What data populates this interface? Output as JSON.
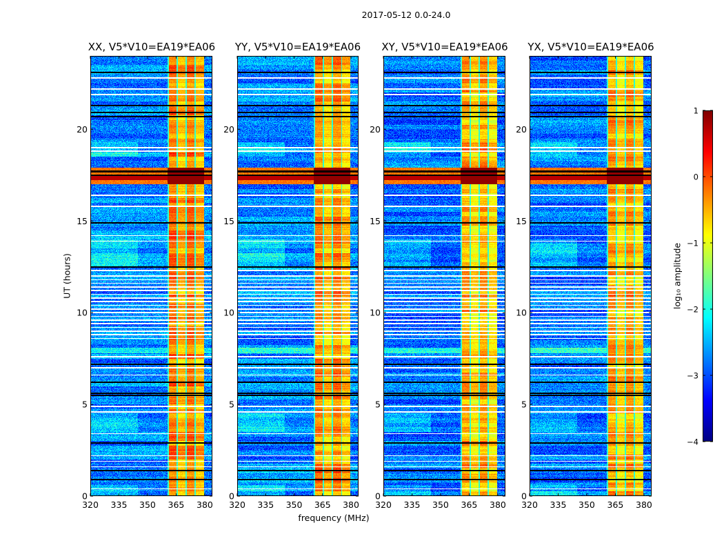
{
  "figure": {
    "suptitle": "2017-05-12 0.0-24.0"
  },
  "chart_data": {
    "type": "heatmap",
    "title": "2017-05-12 0.0-24.0",
    "xlabel": "frequency (MHz)",
    "ylabel": "UT (hours)",
    "xlim": [
      320,
      384
    ],
    "ylim": [
      0,
      24
    ],
    "xticks": [
      "320",
      "335",
      "350",
      "365",
      "380"
    ],
    "yticks": [
      "0",
      "5",
      "10",
      "15",
      "20"
    ],
    "colormap": "jet",
    "colorbar": {
      "label": "log₁₀ amplitude",
      "range": [
        -4,
        1
      ],
      "ticks": [
        "1",
        "0",
        "−1",
        "−2",
        "−3",
        "−4"
      ]
    },
    "panels": [
      {
        "title": "XX, V5*V10=EA19*EA06",
        "background_log_amp": -2.7,
        "rfi_log_amp": -0.3
      },
      {
        "title": "YY, V5*V10=EA19*EA06",
        "background_log_amp": -2.7,
        "rfi_log_amp": -0.4
      },
      {
        "title": "XY, V5*V10=EA19*EA06",
        "background_log_amp": -2.8,
        "rfi_log_amp": -0.5
      },
      {
        "title": "YX, V5*V10=EA19*EA06",
        "background_log_amp": -2.8,
        "rfi_log_amp": -0.5
      }
    ],
    "rfi_band_mhz": [
      360.5,
      379.5
    ],
    "strong_rfi_hours": [
      17.0,
      17.9
    ],
    "flagged_black_hours": [
      23.1,
      21.3,
      20.9,
      20.7,
      17.7,
      17.5,
      14.9,
      12.5,
      7.2,
      6.2,
      5.6,
      5.5,
      2.9,
      1.4,
      0.9
    ],
    "flagged_white_hours": [
      22.8,
      22.2,
      21.9,
      19.0,
      18.8,
      16.4,
      15.8,
      14.2,
      13.9,
      12.3,
      12.0,
      11.8,
      11.6,
      11.4,
      11.2,
      11.0,
      10.8,
      10.6,
      10.4,
      10.2,
      10.0,
      9.8,
      9.6,
      9.4,
      9.2,
      9.0,
      8.8,
      8.6,
      7.6,
      7.0,
      6.6,
      4.9,
      4.6,
      3.4,
      2.2,
      1.9,
      1.6,
      0.4
    ]
  }
}
